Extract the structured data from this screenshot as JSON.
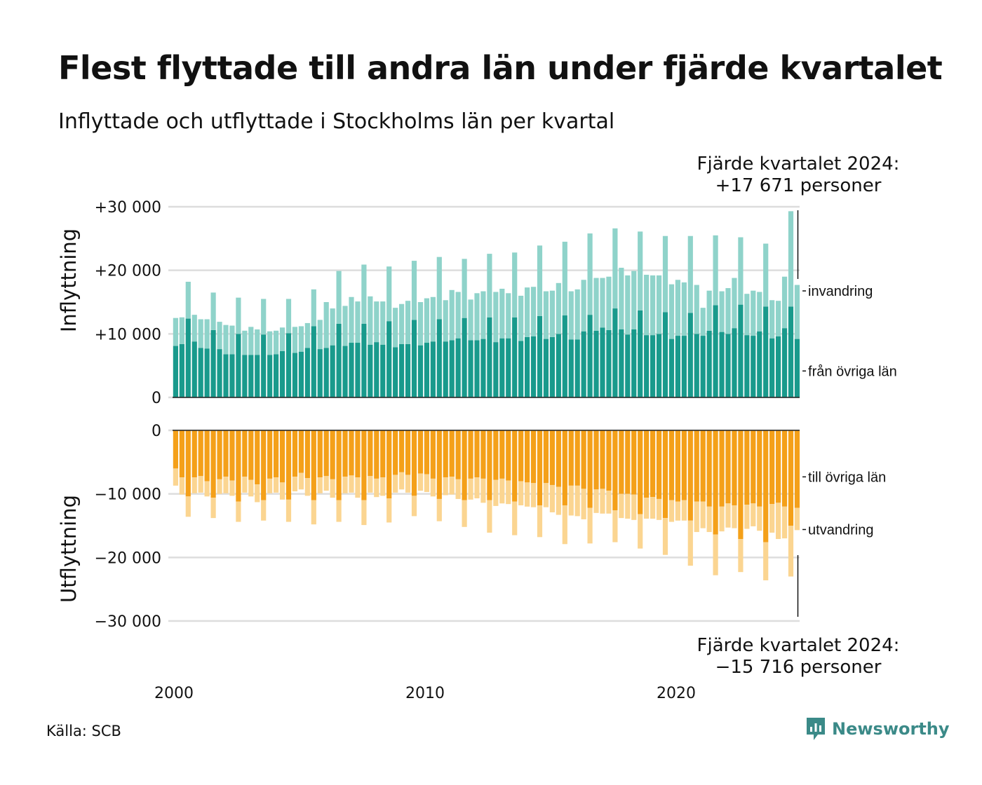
{
  "title": "Flest flyttade till andra län under fjärde kvartalet",
  "subtitle": "Inflyttade och utflyttade i Stockholms län per kvartal",
  "source": "Källa: SCB",
  "brand": "Newsworthy",
  "colors": {
    "fran_ovriga_lan": "#199a8c",
    "invandring": "#8fd3ca",
    "till_ovriga_lan": "#f4a019",
    "utvandring": "#fbd591",
    "grid": "#dddddd",
    "brand": "#3b8a88"
  },
  "chart_data": [
    {
      "type": "bar",
      "stacked": true,
      "ylabel": "Inflyttning",
      "ylim": [
        0,
        30000
      ],
      "yticks": [
        0,
        10000,
        20000,
        30000
      ],
      "ytick_labels": [
        "0",
        "+10 000",
        "+20 000",
        "+30 000"
      ],
      "x_start": "2000 Q1",
      "x_step": "quarter",
      "xticks": [
        "2000",
        "2010",
        "2020"
      ],
      "grid": true,
      "annotation": {
        "line1": "Fjärde kvartalet 2024:",
        "line2": "+17 671 personer"
      },
      "series": [
        {
          "name": "från övriga län",
          "values": [
            8100,
            8400,
            12400,
            8800,
            7800,
            7700,
            10600,
            7600,
            6800,
            6800,
            10000,
            6700,
            6700,
            6700,
            9900,
            6700,
            6800,
            7300,
            10100,
            7000,
            7200,
            7800,
            11200,
            7600,
            7800,
            8200,
            11600,
            8100,
            8600,
            8600,
            11600,
            8300,
            8700,
            8300,
            12000,
            7900,
            8400,
            8400,
            12200,
            8200,
            8600,
            8800,
            12300,
            8800,
            9000,
            9300,
            12500,
            9000,
            9000,
            9200,
            12600,
            8700,
            9300,
            9300,
            12600,
            8900,
            9500,
            9600,
            12800,
            9200,
            9500,
            10000,
            12900,
            9100,
            9100,
            10400,
            13000,
            10500,
            11000,
            10600,
            14000,
            10700,
            9900,
            10700,
            13700,
            9800,
            9800,
            10000,
            13400,
            9200,
            9700,
            9700,
            13300,
            10000,
            9700,
            10500,
            14500,
            10300,
            10000,
            10900,
            14600,
            9800,
            9700,
            10400,
            14300,
            9300,
            9600,
            10900,
            14300,
            9200
          ]
        },
        {
          "name": "invandring",
          "values": [
            4400,
            4200,
            5800,
            4200,
            4500,
            4600,
            5900,
            4300,
            4600,
            4500,
            5700,
            3800,
            4400,
            4000,
            5600,
            3700,
            3700,
            3700,
            5400,
            4100,
            4000,
            3900,
            5800,
            4600,
            7200,
            5800,
            8300,
            6300,
            7200,
            6500,
            9300,
            7600,
            6400,
            6800,
            8600,
            6200,
            6300,
            6800,
            9300,
            6800,
            7000,
            7000,
            9800,
            6500,
            7900,
            7300,
            9300,
            6400,
            7400,
            7500,
            10000,
            7900,
            7800,
            7100,
            10200,
            7100,
            7800,
            7800,
            11100,
            7500,
            7300,
            8000,
            11600,
            7600,
            7900,
            8100,
            12800,
            8300,
            7800,
            8400,
            12600,
            9700,
            9300,
            9200,
            12400,
            9500,
            9400,
            9200,
            12000,
            8600,
            8800,
            8400,
            12100,
            7700,
            4400,
            6300,
            11000,
            6400,
            7200,
            7900,
            10600,
            6500,
            7100,
            6200,
            9900,
            6000,
            5600,
            8100,
            15000,
            8500
          ]
        },
        {
          "name": "",
          "values": [
            0,
            0,
            0,
            0,
            0,
            0,
            0,
            0,
            0,
            0,
            0,
            0,
            0,
            0,
            0,
            0,
            0,
            0,
            0,
            0,
            0,
            0,
            0,
            0,
            0,
            0,
            0,
            0,
            0,
            0,
            0,
            0,
            0,
            0,
            0,
            0,
            0,
            0,
            0,
            0,
            0,
            0,
            0,
            0,
            0,
            0,
            0,
            0,
            0,
            0,
            0,
            0,
            0,
            0,
            0,
            0,
            0,
            0,
            0,
            0,
            0,
            0,
            0,
            0,
            0,
            0,
            0,
            0,
            0,
            0,
            0,
            0,
            0,
            0,
            0,
            0,
            0,
            0,
            0,
            0,
            0,
            0,
            0,
            0,
            0,
            0,
            0,
            0,
            0,
            0,
            0,
            0,
            0,
            0,
            0,
            0,
            0,
            0,
            0,
            0
          ]
        }
      ]
    },
    {
      "type": "bar",
      "stacked": true,
      "ylabel": "Utflyttning",
      "ylim": [
        -30000,
        0
      ],
      "yticks": [
        0,
        -10000,
        -20000,
        -30000
      ],
      "ytick_labels": [
        "0",
        "−10 000",
        "−20 000",
        "−30 000"
      ],
      "x_start": "2000 Q1",
      "x_step": "quarter",
      "xticks": [
        "2000",
        "2010",
        "2020"
      ],
      "grid": true,
      "annotation": {
        "line1": "Fjärde kvartalet 2024:",
        "line2": "−15 716 personer"
      },
      "series": [
        {
          "name": "till övriga län",
          "values": [
            -6000,
            -7400,
            -10400,
            -7400,
            -7200,
            -8000,
            -10600,
            -7700,
            -7300,
            -7900,
            -11200,
            -7300,
            -7800,
            -8500,
            -11000,
            -7600,
            -7400,
            -8200,
            -10900,
            -7300,
            -6700,
            -7500,
            -11000,
            -7400,
            -7200,
            -7700,
            -11000,
            -7300,
            -7100,
            -7400,
            -11000,
            -7200,
            -7600,
            -7400,
            -10700,
            -7000,
            -6600,
            -7000,
            -10300,
            -6800,
            -6900,
            -7600,
            -10800,
            -7400,
            -7300,
            -7700,
            -11000,
            -7600,
            -7400,
            -7600,
            -11000,
            -7800,
            -7600,
            -7900,
            -11200,
            -8000,
            -8200,
            -8300,
            -11800,
            -8300,
            -8600,
            -8900,
            -11800,
            -8700,
            -8700,
            -9200,
            -12200,
            -9300,
            -9200,
            -9500,
            -12600,
            -10000,
            -10000,
            -10100,
            -13200,
            -10600,
            -10500,
            -10800,
            -13800,
            -11000,
            -11200,
            -11000,
            -14200,
            -11200,
            -11200,
            -12000,
            -16400,
            -12000,
            -11500,
            -11800,
            -17100,
            -11700,
            -11500,
            -12000,
            -17600,
            -11600,
            -11400,
            -12000,
            -15000,
            -12200
          ]
        },
        {
          "name": "utvandring",
          "values": [
            -2700,
            -2700,
            -3200,
            -2500,
            -2600,
            -2400,
            -3200,
            -2300,
            -2600,
            -2400,
            -3200,
            -2500,
            -2600,
            -2800,
            -3200,
            -2300,
            -2400,
            -2700,
            -3500,
            -2300,
            -2600,
            -2800,
            -3800,
            -2500,
            -2300,
            -2900,
            -3400,
            -2600,
            -2700,
            -3200,
            -3900,
            -2600,
            -2900,
            -2900,
            -3800,
            -2800,
            -2700,
            -2800,
            -3200,
            -2700,
            -2800,
            -2800,
            -3500,
            -2800,
            -2800,
            -3100,
            -4200,
            -3300,
            -3300,
            -3800,
            -5100,
            -4100,
            -3900,
            -3700,
            -5300,
            -3800,
            -3800,
            -3800,
            -5000,
            -3800,
            -4300,
            -4400,
            -6100,
            -4700,
            -4800,
            -4800,
            -5600,
            -3700,
            -3900,
            -3600,
            -5000,
            -3800,
            -3900,
            -4000,
            -5400,
            -3300,
            -3400,
            -3300,
            -5800,
            -3400,
            -3000,
            -3200,
            -7100,
            -4800,
            -4200,
            -4000,
            -6400,
            -3900,
            -3800,
            -3600,
            -5200,
            -3800,
            -3600,
            -3800,
            -6000,
            -4500,
            -5700,
            -5000,
            -8000,
            -3500
          ]
        },
        {
          "name": "",
          "values": [
            0,
            0,
            0,
            0,
            0,
            0,
            0,
            0,
            0,
            0,
            0,
            0,
            0,
            0,
            0,
            0,
            0,
            0,
            0,
            0,
            0,
            0,
            0,
            0,
            0,
            0,
            0,
            0,
            0,
            0,
            0,
            0,
            0,
            0,
            0,
            0,
            0,
            0,
            0,
            0,
            0,
            0,
            0,
            0,
            0,
            0,
            0,
            0,
            0,
            0,
            0,
            0,
            0,
            0,
            0,
            0,
            0,
            0,
            0,
            0,
            0,
            0,
            0,
            0,
            0,
            0,
            0,
            0,
            0,
            0,
            0,
            0,
            0,
            0,
            0,
            0,
            0,
            0,
            0,
            0,
            0,
            0,
            0,
            0,
            0,
            0,
            0,
            0,
            0,
            0,
            0,
            0,
            0,
            0,
            0,
            0,
            0,
            0,
            0,
            0
          ]
        }
      ]
    }
  ]
}
